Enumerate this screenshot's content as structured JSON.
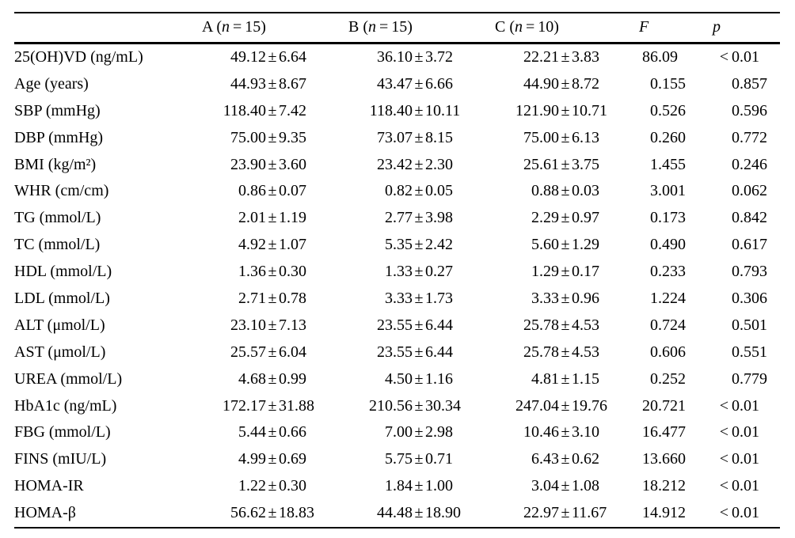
{
  "page": {
    "background": "#ffffff",
    "text_color": "#000000",
    "rule_color": "#000000"
  },
  "table": {
    "columns": [
      {
        "id": "label",
        "label": ""
      },
      {
        "id": "a",
        "label": "A (n=15)"
      },
      {
        "id": "b",
        "label": "B (n=15)"
      },
      {
        "id": "c",
        "label": "C (n=10)"
      },
      {
        "id": "f",
        "label": "F"
      },
      {
        "id": "p",
        "label": "p"
      }
    ],
    "rows": [
      {
        "label": "25(OH)VD (ng/mL)",
        "a": "49.12±6.64",
        "b": "36.10±3.72",
        "c": "22.21±3.83",
        "f": "86.09",
        "p": "<0.01"
      },
      {
        "label": "Age (years)",
        "a": "44.93±8.67",
        "b": "43.47±6.66",
        "c": "44.90±8.72",
        "f": "0.155",
        "p": "0.857"
      },
      {
        "label": "SBP (mmHg)",
        "a": "118.40±7.42",
        "b": "118.40±10.11",
        "c": "121.90±10.71",
        "f": "0.526",
        "p": "0.596"
      },
      {
        "label": "DBP (mmHg)",
        "a": "75.00±9.35",
        "b": "73.07±8.15",
        "c": "75.00±6.13",
        "f": "0.260",
        "p": "0.772"
      },
      {
        "label": "BMI (kg/m²)",
        "a": "23.90±3.60",
        "b": "23.42±2.30",
        "c": "25.61±3.75",
        "f": "1.455",
        "p": "0.246"
      },
      {
        "label": "WHR (cm/cm)",
        "a": "0.86±0.07",
        "b": "0.82±0.05",
        "c": "0.88±0.03",
        "f": "3.001",
        "p": "0.062"
      },
      {
        "label": "TG (mmol/L)",
        "a": "2.01±1.19",
        "b": "2.77±3.98",
        "c": "2.29±0.97",
        "f": "0.173",
        "p": "0.842"
      },
      {
        "label": "TC (mmol/L)",
        "a": "4.92±1.07",
        "b": "5.35±2.42",
        "c": "5.60±1.29",
        "f": "0.490",
        "p": "0.617"
      },
      {
        "label": "HDL (mmol/L)",
        "a": "1.36±0.30",
        "b": "1.33±0.27",
        "c": "1.29±0.17",
        "f": "0.233",
        "p": "0.793"
      },
      {
        "label": "LDL (mmol/L)",
        "a": "2.71±0.78",
        "b": "3.33±1.73",
        "c": "3.33±0.96",
        "f": "1.224",
        "p": "0.306"
      },
      {
        "label": "ALT (μmol/L)",
        "a": "23.10±7.13",
        "b": "23.55±6.44",
        "c": "25.78±4.53",
        "f": "0.724",
        "p": "0.501"
      },
      {
        "label": "AST (μmol/L)",
        "a": "25.57±6.04",
        "b": "23.55±6.44",
        "c": "25.78±4.53",
        "f": "0.606",
        "p": "0.551"
      },
      {
        "label": "UREA (mmol/L)",
        "a": "4.68±0.99",
        "b": "4.50±1.16",
        "c": "4.81±1.15",
        "f": "0.252",
        "p": "0.779"
      },
      {
        "label": "HbA1c (ng/mL)",
        "a": "172.17±31.88",
        "b": "210.56±30.34",
        "c": "247.04±19.76",
        "f": "20.721",
        "p": "<0.01"
      },
      {
        "label": "FBG (mmol/L)",
        "a": "5.44±0.66",
        "b": "7.00±2.98",
        "c": "10.46±3.10",
        "f": "16.477",
        "p": "<0.01"
      },
      {
        "label": "FINS (mIU/L)",
        "a": "4.99±0.69",
        "b": "5.75±0.71",
        "c": "6.43±0.62",
        "f": "13.660",
        "p": "<0.01"
      },
      {
        "label": "HOMA-IR",
        "a": "1.22±0.30",
        "b": "1.84±1.00",
        "c": "3.04±1.08",
        "f": "18.212",
        "p": "<0.01"
      },
      {
        "label": "HOMA-β",
        "a": "56.62±18.83",
        "b": "44.48±18.90",
        "c": "22.97±11.67",
        "f": "14.912",
        "p": "<0.01"
      }
    ]
  }
}
